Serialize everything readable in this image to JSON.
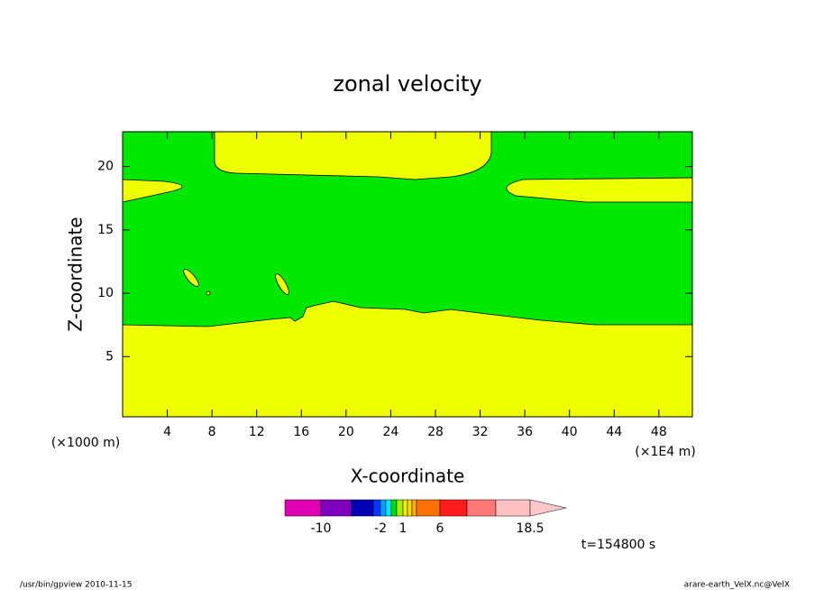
{
  "chart_data": {
    "type": "contour",
    "title": "zonal velocity",
    "xlabel": "X-coordinate",
    "ylabel": "Z-coordinate",
    "x_unit": "(×1E4 m)",
    "y_unit": "(×1000 m)",
    "xlim": [
      0,
      51
    ],
    "xticks": [
      4,
      8,
      12,
      16,
      20,
      24,
      28,
      32,
      36,
      40,
      44,
      48
    ],
    "ylim": [
      0.25,
      22.75
    ],
    "yticks": [
      5,
      10,
      15,
      20
    ],
    "colorbar_colors": [
      "#e000b4",
      "#8000c0",
      "#0000b4",
      "#0038ff",
      "#00a0ff",
      "#00e8ff",
      "#00e000",
      "#a0f000",
      "#f0f000",
      "#ffd800",
      "#ffb000",
      "#ff7000",
      "#ff1c1c",
      "#ff7878",
      "#ffc0c0",
      "#ffc8c8"
    ],
    "colorbar_ticks": [
      null,
      -10,
      null,
      null,
      -2,
      null,
      null,
      null,
      1,
      null,
      null,
      null,
      6,
      null,
      null,
      18.5
    ],
    "time_label": "t=154800 s",
    "footer_left": "/usr/bin/gpview   2010-11-15",
    "footer_right": "arare-earth_VelX.nc@VelX"
  }
}
